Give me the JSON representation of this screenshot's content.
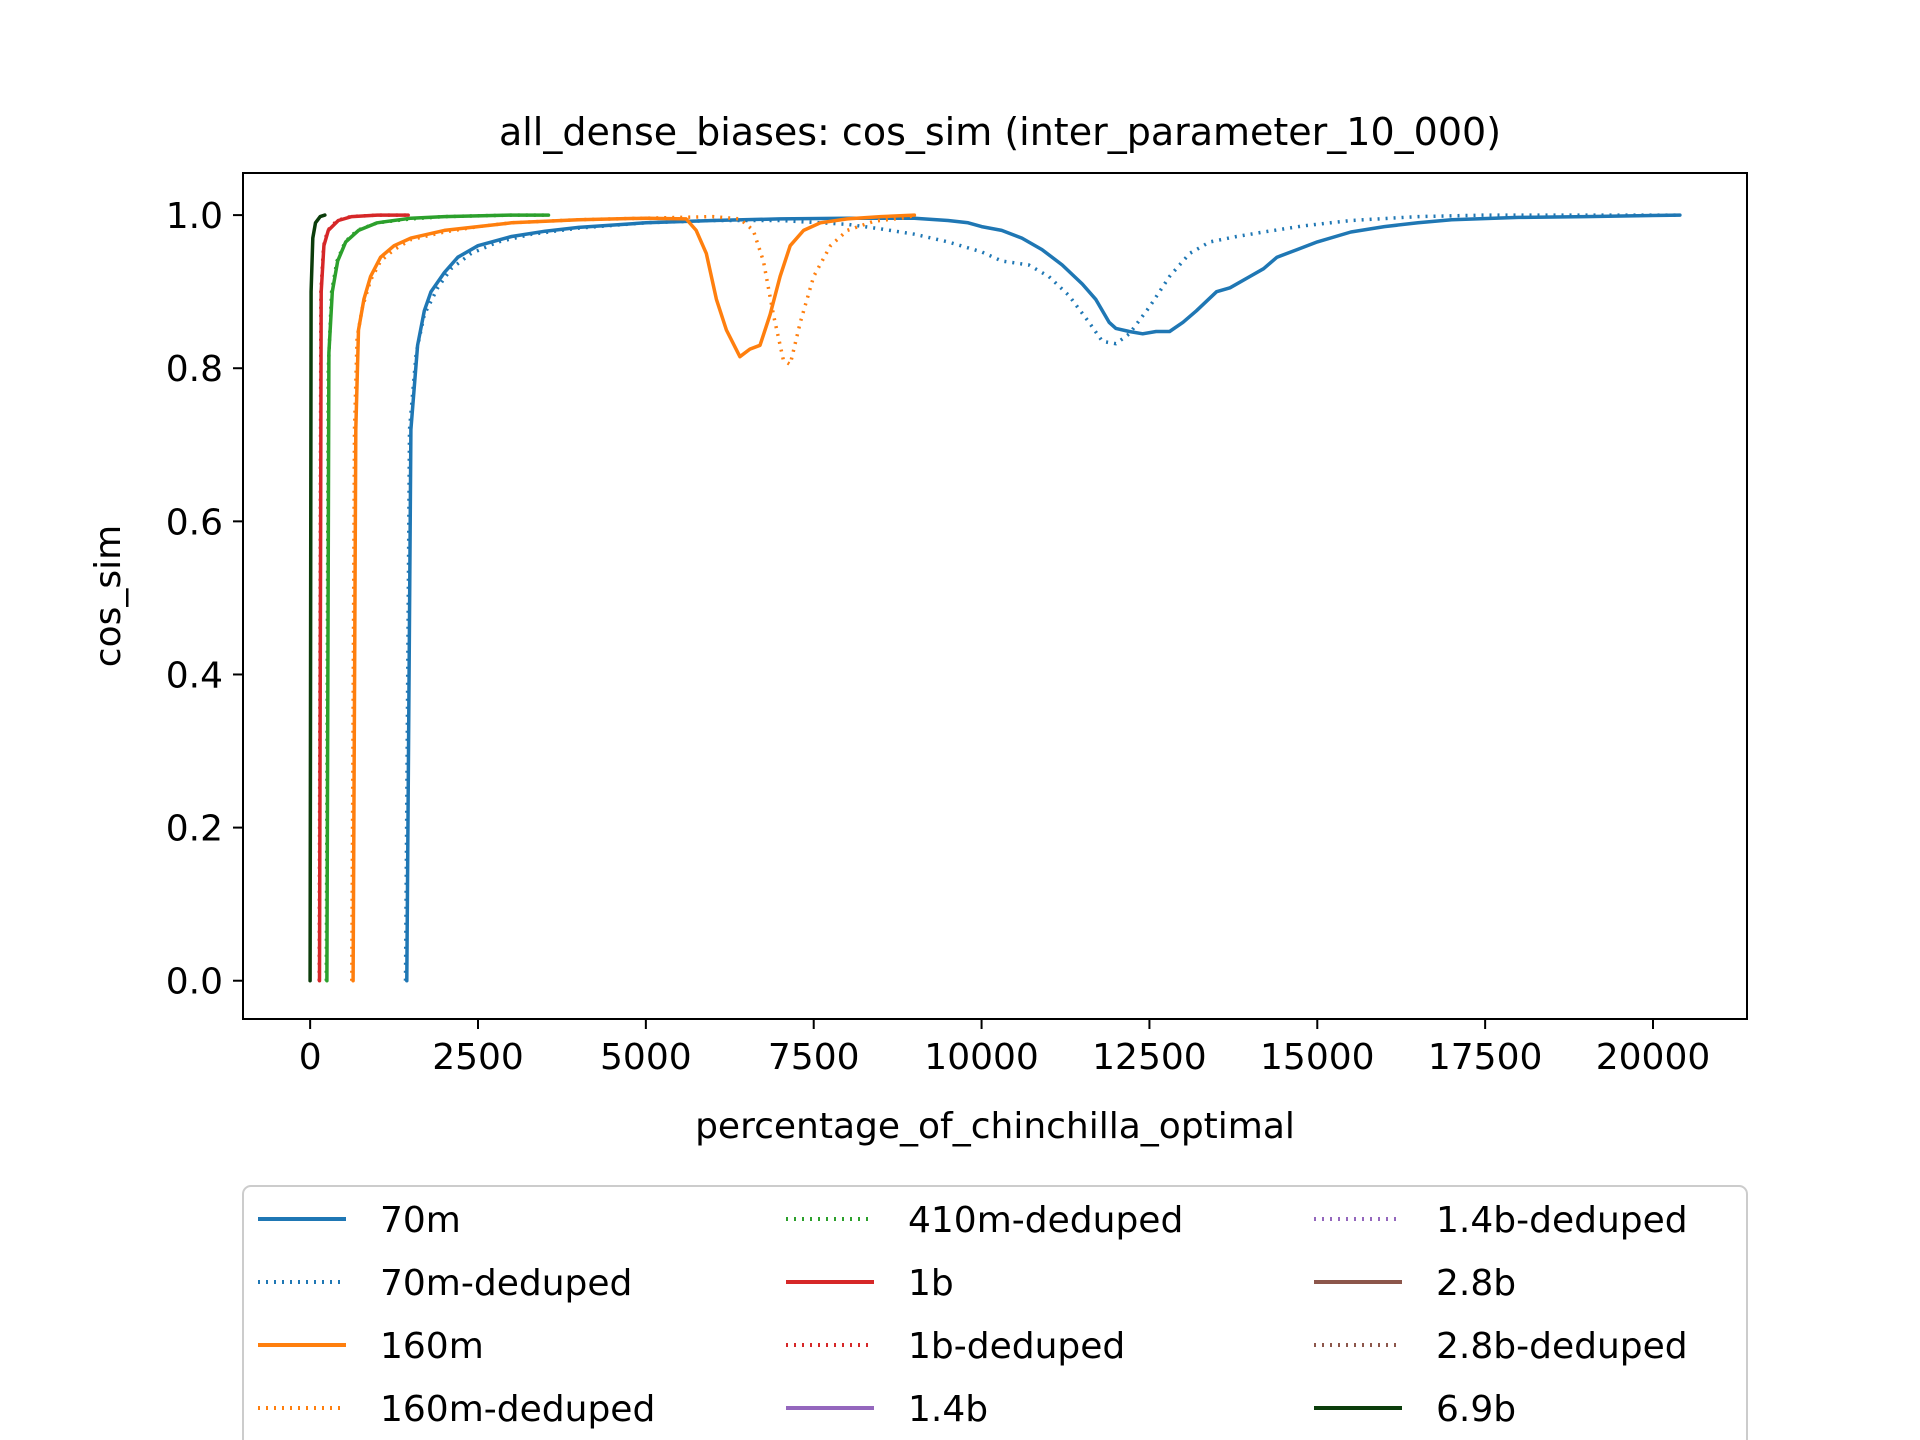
{
  "chart_data": {
    "type": "line",
    "title": "all_dense_biases: cos_sim (inter_parameter_10_000)",
    "xlabel": "percentage_of_chinchilla_optimal",
    "ylabel": "cos_sim",
    "xlim": [
      -1000,
      21400
    ],
    "ylim": [
      -0.05,
      1.055
    ],
    "xticks": [
      0,
      2500,
      5000,
      7500,
      10000,
      12500,
      15000,
      17500,
      20000
    ],
    "xtick_labels": [
      "0",
      "2500",
      "5000",
      "7500",
      "10000",
      "12500",
      "15000",
      "17500",
      "20000"
    ],
    "yticks": [
      0.0,
      0.2,
      0.4,
      0.6,
      0.8,
      1.0
    ],
    "ytick_labels": [
      "0.0",
      "0.2",
      "0.4",
      "0.6",
      "0.8",
      "1.0"
    ],
    "grid": false,
    "legend_placement": "below",
    "series": [
      {
        "name": "70m",
        "color": "#1f77b4",
        "dash": "solid",
        "points": [
          [
            1440,
            0.0
          ],
          [
            1500,
            0.72
          ],
          [
            1600,
            0.83
          ],
          [
            1700,
            0.875
          ],
          [
            1800,
            0.9
          ],
          [
            2000,
            0.925
          ],
          [
            2200,
            0.945
          ],
          [
            2500,
            0.96
          ],
          [
            3000,
            0.972
          ],
          [
            3500,
            0.979
          ],
          [
            4000,
            0.984
          ],
          [
            5000,
            0.99
          ],
          [
            6000,
            0.993
          ],
          [
            7000,
            0.995
          ],
          [
            8000,
            0.996
          ],
          [
            9000,
            0.996
          ],
          [
            9500,
            0.993
          ],
          [
            9800,
            0.99
          ],
          [
            10000,
            0.985
          ],
          [
            10300,
            0.98
          ],
          [
            10600,
            0.97
          ],
          [
            10900,
            0.955
          ],
          [
            11200,
            0.935
          ],
          [
            11500,
            0.91
          ],
          [
            11700,
            0.89
          ],
          [
            11900,
            0.86
          ],
          [
            12000,
            0.852
          ],
          [
            12200,
            0.848
          ],
          [
            12400,
            0.845
          ],
          [
            12600,
            0.848
          ],
          [
            12800,
            0.848
          ],
          [
            13000,
            0.86
          ],
          [
            13200,
            0.875
          ],
          [
            13500,
            0.9
          ],
          [
            13700,
            0.905
          ],
          [
            14000,
            0.92
          ],
          [
            14200,
            0.93
          ],
          [
            14400,
            0.945
          ],
          [
            14700,
            0.955
          ],
          [
            15000,
            0.965
          ],
          [
            15500,
            0.978
          ],
          [
            16000,
            0.985
          ],
          [
            16500,
            0.99
          ],
          [
            17000,
            0.994
          ],
          [
            18000,
            0.997
          ],
          [
            19000,
            0.998
          ],
          [
            20400,
            1.0
          ]
        ]
      },
      {
        "name": "70m-deduped",
        "color": "#1f77b4",
        "dash": "dotted",
        "points": [
          [
            1420,
            0.0
          ],
          [
            1480,
            0.72
          ],
          [
            1580,
            0.82
          ],
          [
            1700,
            0.87
          ],
          [
            1900,
            0.905
          ],
          [
            2100,
            0.93
          ],
          [
            2400,
            0.95
          ],
          [
            2800,
            0.965
          ],
          [
            3300,
            0.975
          ],
          [
            4000,
            0.983
          ],
          [
            5000,
            0.99
          ],
          [
            6000,
            0.993
          ],
          [
            7000,
            0.993
          ],
          [
            8000,
            0.988
          ],
          [
            8500,
            0.982
          ],
          [
            9000,
            0.975
          ],
          [
            9500,
            0.965
          ],
          [
            10000,
            0.952
          ],
          [
            10300,
            0.94
          ],
          [
            10700,
            0.935
          ],
          [
            11000,
            0.92
          ],
          [
            11300,
            0.895
          ],
          [
            11600,
            0.86
          ],
          [
            11800,
            0.835
          ],
          [
            12000,
            0.832
          ],
          [
            12200,
            0.845
          ],
          [
            12500,
            0.88
          ],
          [
            12800,
            0.92
          ],
          [
            13100,
            0.95
          ],
          [
            13400,
            0.965
          ],
          [
            13800,
            0.972
          ],
          [
            14200,
            0.978
          ],
          [
            14800,
            0.986
          ],
          [
            15500,
            0.993
          ],
          [
            16500,
            0.998
          ],
          [
            17500,
            1.0
          ],
          [
            19000,
            1.0
          ],
          [
            20400,
            1.0
          ]
        ]
      },
      {
        "name": "160m",
        "color": "#ff7f0e",
        "dash": "solid",
        "points": [
          [
            640,
            0.0
          ],
          [
            680,
            0.72
          ],
          [
            720,
            0.85
          ],
          [
            800,
            0.89
          ],
          [
            900,
            0.92
          ],
          [
            1050,
            0.945
          ],
          [
            1250,
            0.96
          ],
          [
            1500,
            0.97
          ],
          [
            2000,
            0.98
          ],
          [
            2500,
            0.985
          ],
          [
            3000,
            0.99
          ],
          [
            4000,
            0.994
          ],
          [
            5000,
            0.996
          ],
          [
            5600,
            0.995
          ],
          [
            5750,
            0.98
          ],
          [
            5900,
            0.95
          ],
          [
            6050,
            0.89
          ],
          [
            6200,
            0.85
          ],
          [
            6400,
            0.815
          ],
          [
            6550,
            0.825
          ],
          [
            6700,
            0.83
          ],
          [
            6850,
            0.87
          ],
          [
            7000,
            0.92
          ],
          [
            7150,
            0.96
          ],
          [
            7350,
            0.98
          ],
          [
            7600,
            0.99
          ],
          [
            8000,
            0.995
          ],
          [
            8500,
            0.998
          ],
          [
            9000,
            1.0
          ]
        ]
      },
      {
        "name": "160m-deduped",
        "color": "#ff7f0e",
        "dash": "dotted",
        "points": [
          [
            620,
            0.0
          ],
          [
            660,
            0.72
          ],
          [
            700,
            0.84
          ],
          [
            780,
            0.88
          ],
          [
            900,
            0.915
          ],
          [
            1050,
            0.94
          ],
          [
            1250,
            0.955
          ],
          [
            1500,
            0.968
          ],
          [
            2000,
            0.978
          ],
          [
            2500,
            0.985
          ],
          [
            3000,
            0.99
          ],
          [
            4000,
            0.994
          ],
          [
            5000,
            0.996
          ],
          [
            6000,
            0.998
          ],
          [
            6400,
            0.995
          ],
          [
            6600,
            0.98
          ],
          [
            6750,
            0.94
          ],
          [
            6900,
            0.87
          ],
          [
            7050,
            0.81
          ],
          [
            7150,
            0.805
          ],
          [
            7300,
            0.86
          ],
          [
            7500,
            0.92
          ],
          [
            7750,
            0.96
          ],
          [
            8000,
            0.98
          ],
          [
            8400,
            0.992
          ],
          [
            8900,
            0.997
          ],
          [
            9000,
            1.0
          ]
        ]
      },
      {
        "name": "410m-deduped",
        "color": "#2ca02c",
        "dash": "dotted",
        "points": [
          [
            240,
            0.0
          ],
          [
            270,
            0.8
          ],
          [
            320,
            0.9
          ],
          [
            400,
            0.94
          ],
          [
            520,
            0.965
          ],
          [
            700,
            0.98
          ],
          [
            1000,
            0.99
          ],
          [
            1500,
            0.995
          ],
          [
            2000,
            0.998
          ],
          [
            3000,
            1.0
          ],
          [
            3550,
            1.0
          ]
        ]
      },
      {
        "name": "410m",
        "color": "#2ca02c",
        "dash": "solid",
        "points": [
          [
            250,
            0.0
          ],
          [
            280,
            0.82
          ],
          [
            330,
            0.9
          ],
          [
            410,
            0.94
          ],
          [
            530,
            0.965
          ],
          [
            720,
            0.98
          ],
          [
            1000,
            0.99
          ],
          [
            1500,
            0.996
          ],
          [
            2000,
            0.998
          ],
          [
            3000,
            1.0
          ],
          [
            3550,
            1.0
          ]
        ]
      },
      {
        "name": "1b-deduped",
        "color": "#d62728",
        "dash": "dotted",
        "points": [
          [
            135,
            0.0
          ],
          [
            160,
            0.9
          ],
          [
            200,
            0.96
          ],
          [
            260,
            0.98
          ],
          [
            400,
            0.993
          ],
          [
            600,
            0.998
          ],
          [
            1000,
            1.0
          ],
          [
            1460,
            1.0
          ]
        ]
      },
      {
        "name": "1b",
        "color": "#d62728",
        "dash": "solid",
        "points": [
          [
            140,
            0.0
          ],
          [
            165,
            0.9
          ],
          [
            205,
            0.96
          ],
          [
            270,
            0.98
          ],
          [
            420,
            0.993
          ],
          [
            620,
            0.998
          ],
          [
            1000,
            1.0
          ],
          [
            1460,
            1.0
          ]
        ]
      },
      {
        "name": "6.9b",
        "color": "#0b3d0b",
        "dash": "solid",
        "points": [
          [
            0,
            0.0
          ],
          [
            15,
            0.9
          ],
          [
            40,
            0.97
          ],
          [
            80,
            0.99
          ],
          [
            150,
            0.998
          ],
          [
            220,
            1.0
          ]
        ]
      }
    ],
    "legend": [
      {
        "label": "70m",
        "color": "#1f77b4",
        "dash": "solid"
      },
      {
        "label": "70m-deduped",
        "color": "#1f77b4",
        "dash": "dotted"
      },
      {
        "label": "160m",
        "color": "#ff7f0e",
        "dash": "solid"
      },
      {
        "label": "160m-deduped",
        "color": "#ff7f0e",
        "dash": "dotted"
      },
      {
        "label": "410m-deduped",
        "color": "#2ca02c",
        "dash": "dotted"
      },
      {
        "label": "1b",
        "color": "#d62728",
        "dash": "solid"
      },
      {
        "label": "1b-deduped",
        "color": "#d62728",
        "dash": "dotted"
      },
      {
        "label": "1.4b",
        "color": "#9467bd",
        "dash": "solid"
      },
      {
        "label": "1.4b-deduped",
        "color": "#9467bd",
        "dash": "dotted"
      },
      {
        "label": "2.8b",
        "color": "#8c564b",
        "dash": "solid"
      },
      {
        "label": "2.8b-deduped",
        "color": "#8c564b",
        "dash": "dotted"
      },
      {
        "label": "6.9b",
        "color": "#0b3d0b",
        "dash": "solid"
      }
    ]
  }
}
